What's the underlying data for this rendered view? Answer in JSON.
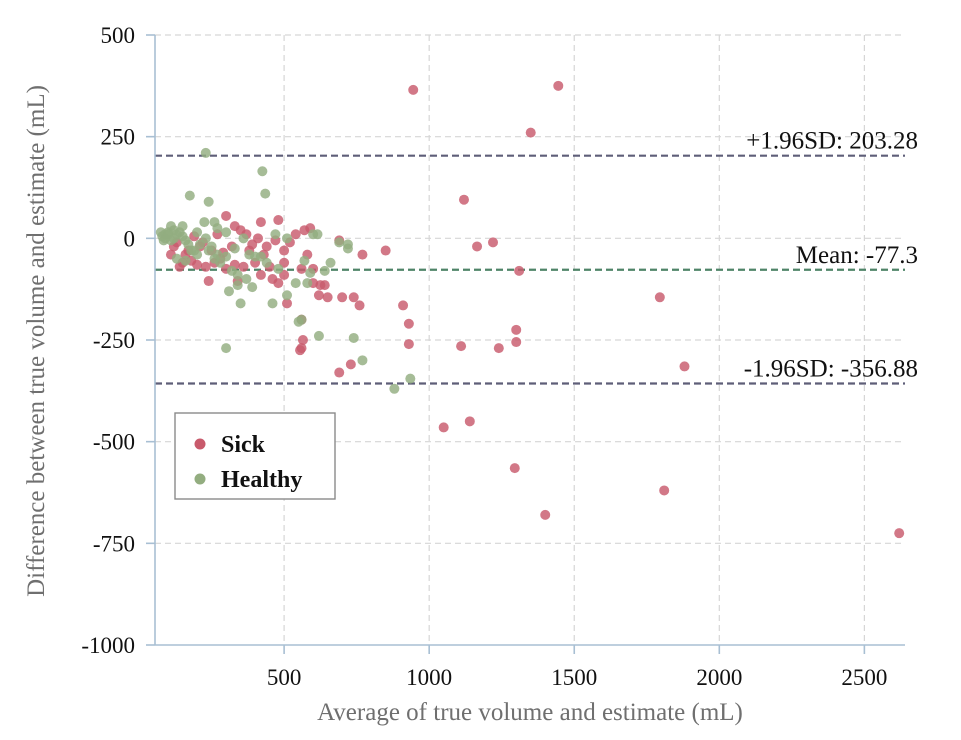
{
  "chart_data": {
    "type": "scatter",
    "title": "",
    "xlabel": "Average of true volume and estimate (mL)",
    "ylabel": "Difference between true volume and estimate (mL)",
    "xlim": [
      55,
      2640
    ],
    "ylim": [
      -1000,
      500
    ],
    "xticks": [
      500,
      1000,
      1500,
      2000,
      2500
    ],
    "yticks": [
      500,
      250,
      0,
      -250,
      -500,
      -750,
      -1000
    ],
    "grid": true,
    "legend_position": "bottom-left",
    "colors": {
      "Sick": "#c85a6c",
      "Healthy": "#93ad80"
    },
    "reference_lines": [
      {
        "label": "+1.96SD: 203.28",
        "value": 203.28,
        "color": "#5e5e78"
      },
      {
        "label": "Mean: -77.3",
        "value": -77.3,
        "color": "#4f8468"
      },
      {
        "label": "-1.96SD: -356.88",
        "value": -356.88,
        "color": "#5e5e78"
      }
    ],
    "series": [
      {
        "name": "Sick",
        "points": [
          [
            945,
            365
          ],
          [
            1445,
            375
          ],
          [
            1350,
            260
          ],
          [
            1120,
            95
          ],
          [
            1220,
            -10
          ],
          [
            1165,
            -20
          ],
          [
            1310,
            -80
          ],
          [
            850,
            -30
          ],
          [
            910,
            -165
          ],
          [
            930,
            -210
          ],
          [
            1300,
            -225
          ],
          [
            1110,
            -265
          ],
          [
            930,
            -260
          ],
          [
            1300,
            -255
          ],
          [
            1240,
            -270
          ],
          [
            1795,
            -145
          ],
          [
            1880,
            -315
          ],
          [
            1050,
            -465
          ],
          [
            1140,
            -450
          ],
          [
            1295,
            -565
          ],
          [
            1400,
            -680
          ],
          [
            1810,
            -620
          ],
          [
            2620,
            -725
          ],
          [
            700,
            -145
          ],
          [
            740,
            -145
          ],
          [
            760,
            -165
          ],
          [
            690,
            -330
          ],
          [
            730,
            -310
          ],
          [
            770,
            -40
          ],
          [
            690,
            -5
          ],
          [
            560,
            -200
          ],
          [
            565,
            -250
          ],
          [
            560,
            -270
          ],
          [
            555,
            -275
          ],
          [
            640,
            -115
          ],
          [
            625,
            -115
          ],
          [
            600,
            -75
          ],
          [
            580,
            -40
          ],
          [
            620,
            -140
          ],
          [
            650,
            -145
          ],
          [
            600,
            -110
          ],
          [
            560,
            -75
          ],
          [
            500,
            -60
          ],
          [
            500,
            -90
          ],
          [
            510,
            -160
          ],
          [
            480,
            -110
          ],
          [
            450,
            -70
          ],
          [
            460,
            -100
          ],
          [
            420,
            -90
          ],
          [
            430,
            -40
          ],
          [
            400,
            -60
          ],
          [
            380,
            -30
          ],
          [
            360,
            -70
          ],
          [
            330,
            -65
          ],
          [
            340,
            -105
          ],
          [
            300,
            -75
          ],
          [
            280,
            -50
          ],
          [
            260,
            -60
          ],
          [
            240,
            -105
          ],
          [
            230,
            -70
          ],
          [
            200,
            -65
          ],
          [
            180,
            -55
          ],
          [
            160,
            -40
          ],
          [
            150,
            -60
          ],
          [
            140,
            -70
          ],
          [
            120,
            -20
          ],
          [
            110,
            -40
          ],
          [
            130,
            -10
          ],
          [
            170,
            -30
          ],
          [
            210,
            -20
          ],
          [
            250,
            -30
          ],
          [
            290,
            -35
          ],
          [
            320,
            -20
          ],
          [
            350,
            20
          ],
          [
            370,
            10
          ],
          [
            390,
            -15
          ],
          [
            410,
            0
          ],
          [
            440,
            -20
          ],
          [
            470,
            -5
          ],
          [
            520,
            -10
          ],
          [
            540,
            10
          ],
          [
            570,
            20
          ],
          [
            590,
            25
          ],
          [
            480,
            45
          ],
          [
            420,
            40
          ],
          [
            300,
            55
          ],
          [
            270,
            10
          ],
          [
            330,
            30
          ],
          [
            220,
            -10
          ],
          [
            190,
            5
          ],
          [
            500,
            -30
          ]
        ]
      },
      {
        "name": "Healthy",
        "points": [
          [
            230,
            210
          ],
          [
            425,
            165
          ],
          [
            435,
            110
          ],
          [
            175,
            105
          ],
          [
            240,
            90
          ],
          [
            260,
            40
          ],
          [
            225,
            40
          ],
          [
            470,
            10
          ],
          [
            510,
            0
          ],
          [
            600,
            10
          ],
          [
            615,
            10
          ],
          [
            690,
            -10
          ],
          [
            720,
            -25
          ],
          [
            570,
            -55
          ],
          [
            480,
            -75
          ],
          [
            590,
            -85
          ],
          [
            640,
            -80
          ],
          [
            580,
            -110
          ],
          [
            540,
            -110
          ],
          [
            510,
            -140
          ],
          [
            460,
            -160
          ],
          [
            390,
            -120
          ],
          [
            370,
            -100
          ],
          [
            350,
            -160
          ],
          [
            310,
            -130
          ],
          [
            300,
            -270
          ],
          [
            560,
            -200
          ],
          [
            550,
            -205
          ],
          [
            620,
            -240
          ],
          [
            740,
            -245
          ],
          [
            770,
            -300
          ],
          [
            880,
            -370
          ],
          [
            935,
            -345
          ],
          [
            660,
            -60
          ],
          [
            720,
            -15
          ],
          [
            330,
            -25
          ],
          [
            300,
            -45
          ],
          [
            270,
            -40
          ],
          [
            250,
            -20
          ],
          [
            200,
            -40
          ],
          [
            190,
            -30
          ],
          [
            170,
            -15
          ],
          [
            160,
            -5
          ],
          [
            150,
            5
          ],
          [
            140,
            15
          ],
          [
            120,
            20
          ],
          [
            110,
            30
          ],
          [
            100,
            10
          ],
          [
            90,
            0
          ],
          [
            80,
            5
          ],
          [
            75,
            15
          ],
          [
            130,
            -50
          ],
          [
            160,
            -55
          ],
          [
            180,
            -30
          ],
          [
            210,
            -15
          ],
          [
            240,
            -30
          ],
          [
            280,
            -60
          ],
          [
            320,
            -80
          ],
          [
            340,
            -90
          ],
          [
            400,
            -45
          ],
          [
            420,
            -45
          ],
          [
            440,
            -60
          ],
          [
            360,
            0
          ],
          [
            300,
            15
          ],
          [
            270,
            25
          ],
          [
            230,
            0
          ],
          [
            200,
            15
          ],
          [
            150,
            30
          ],
          [
            130,
            10
          ],
          [
            110,
            -5
          ],
          [
            260,
            -50
          ],
          [
            340,
            -115
          ],
          [
            380,
            -40
          ],
          [
            120,
            0
          ],
          [
            100,
            15
          ],
          [
            90,
            10
          ],
          [
            85,
            -5
          ]
        ]
      }
    ]
  }
}
